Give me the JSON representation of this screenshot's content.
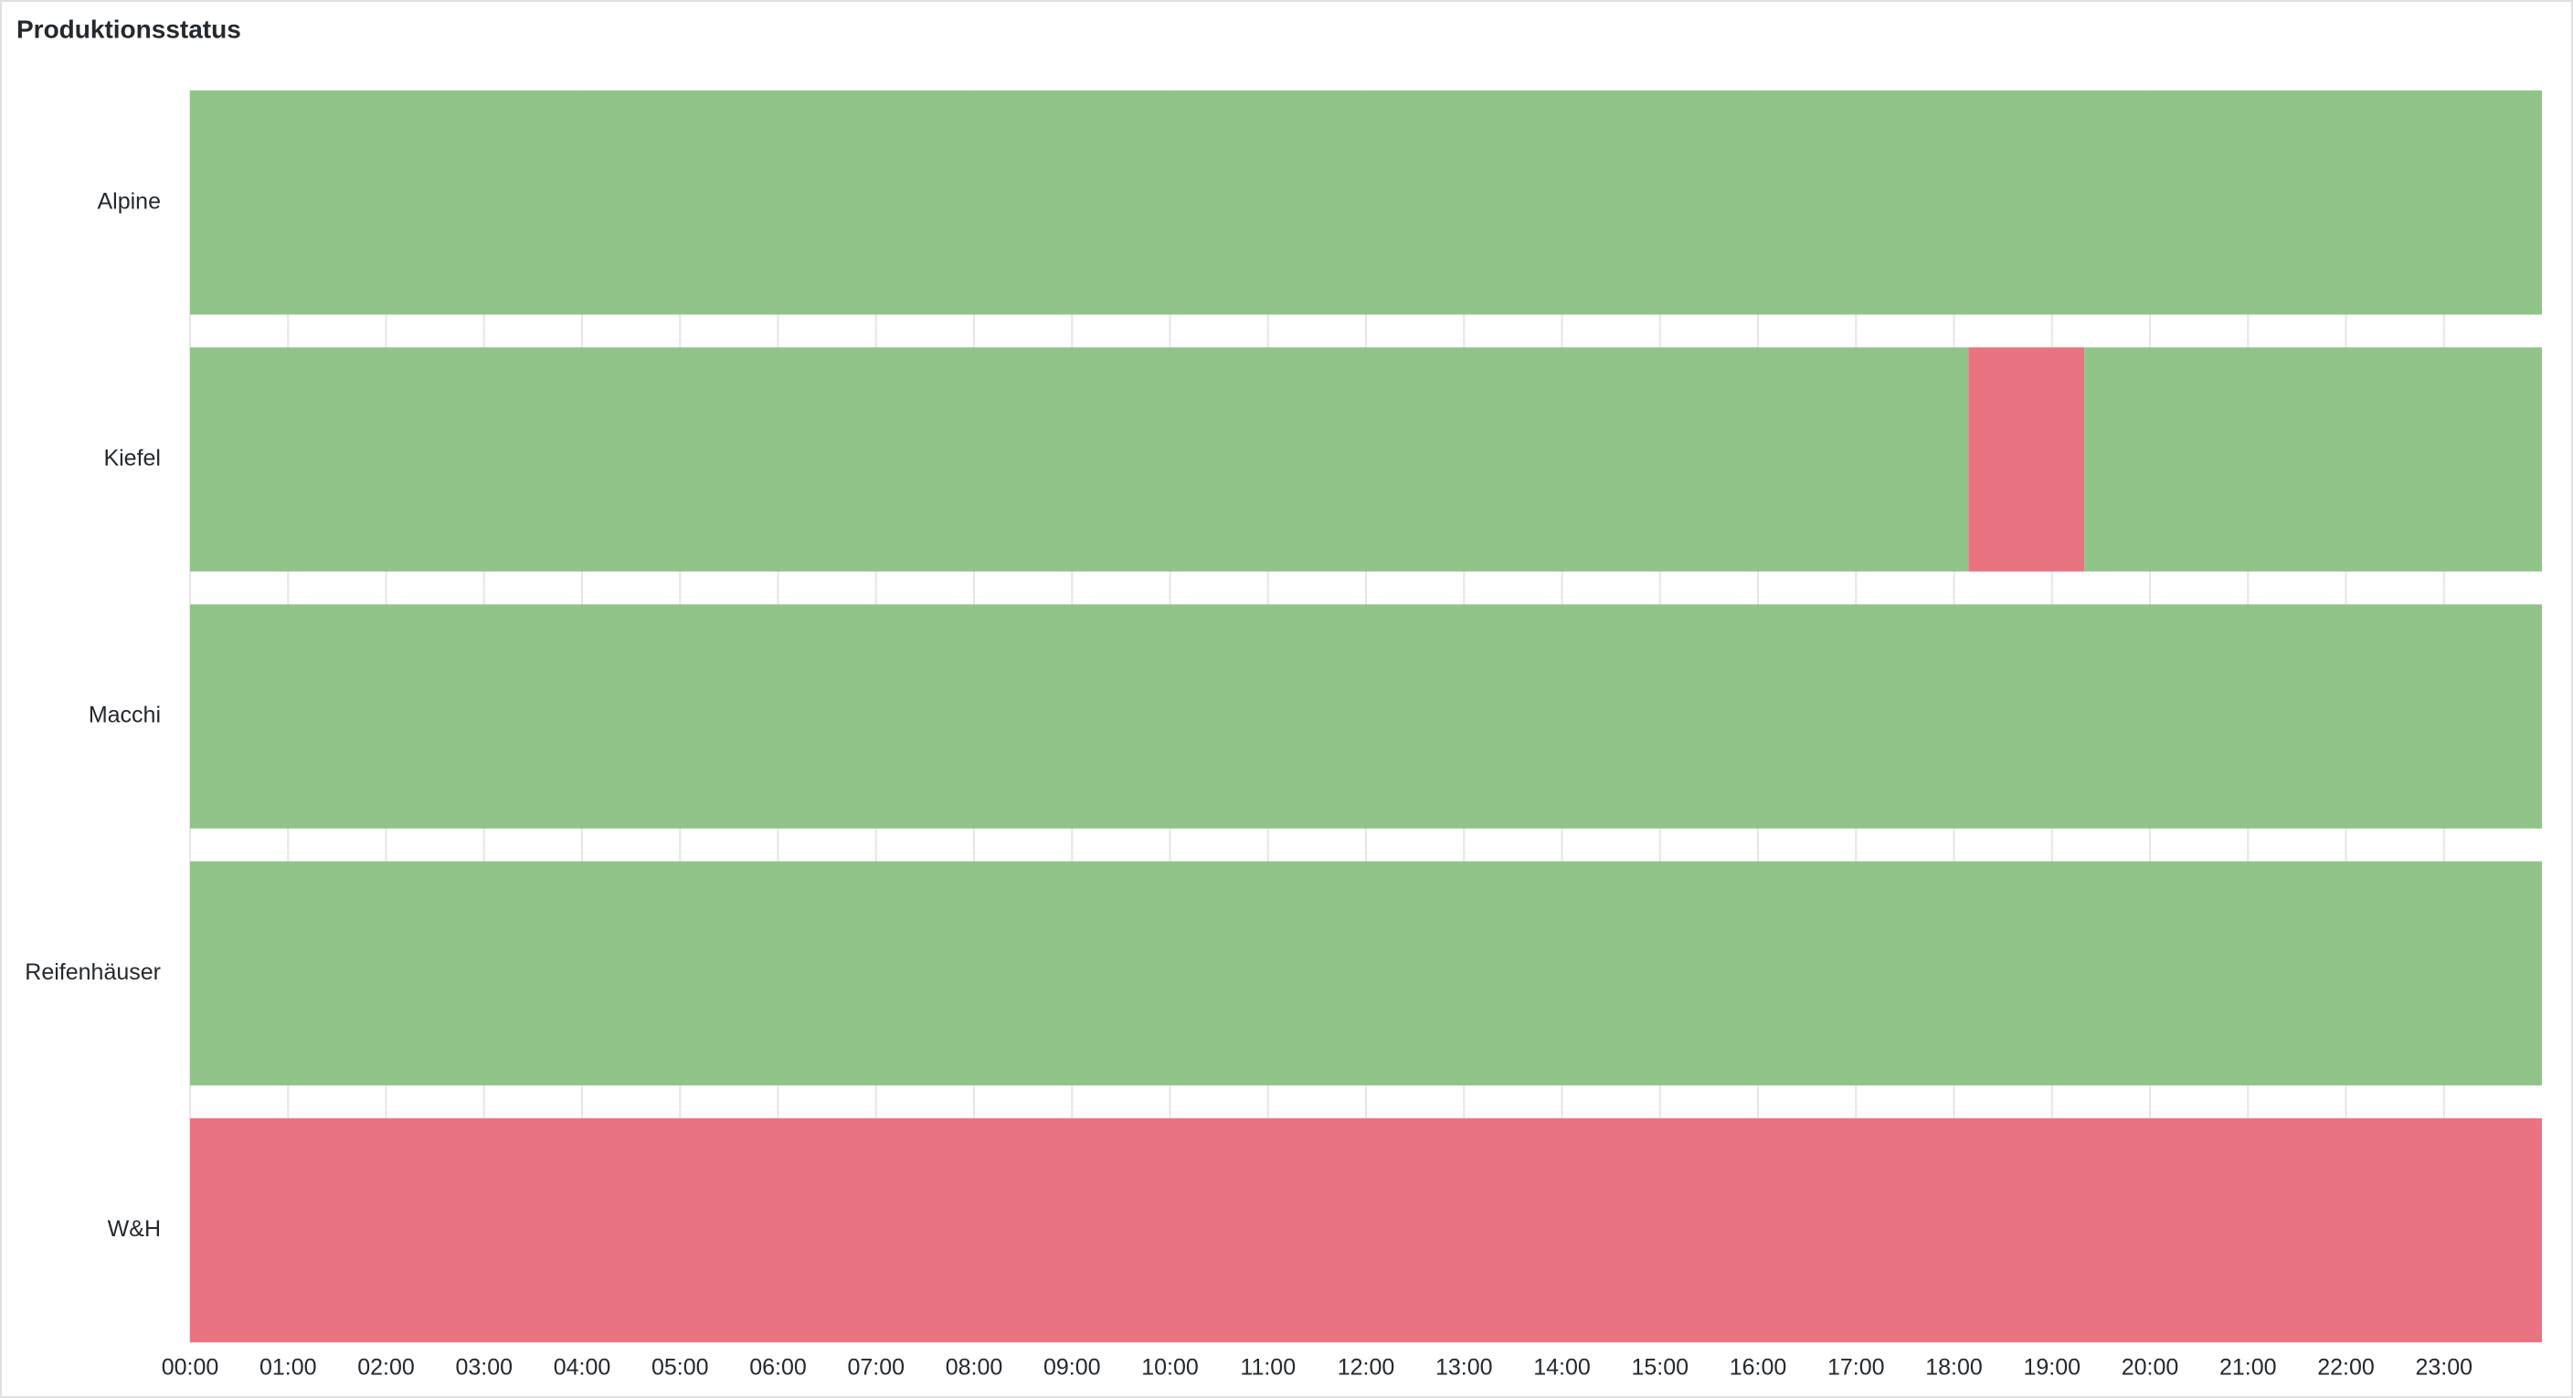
{
  "chart_data": {
    "type": "state-timeline",
    "title": "Produktionsstatus",
    "xlim": [
      0,
      24
    ],
    "xticks": [
      {
        "value": 0,
        "label": "00:00"
      },
      {
        "value": 1,
        "label": "01:00"
      },
      {
        "value": 2,
        "label": "02:00"
      },
      {
        "value": 3,
        "label": "03:00"
      },
      {
        "value": 4,
        "label": "04:00"
      },
      {
        "value": 5,
        "label": "05:00"
      },
      {
        "value": 6,
        "label": "06:00"
      },
      {
        "value": 7,
        "label": "07:00"
      },
      {
        "value": 8,
        "label": "08:00"
      },
      {
        "value": 9,
        "label": "09:00"
      },
      {
        "value": 10,
        "label": "10:00"
      },
      {
        "value": 11,
        "label": "11:00"
      },
      {
        "value": 12,
        "label": "12:00"
      },
      {
        "value": 13,
        "label": "13:00"
      },
      {
        "value": 14,
        "label": "14:00"
      },
      {
        "value": 15,
        "label": "15:00"
      },
      {
        "value": 16,
        "label": "16:00"
      },
      {
        "value": 17,
        "label": "17:00"
      },
      {
        "value": 18,
        "label": "18:00"
      },
      {
        "value": 19,
        "label": "19:00"
      },
      {
        "value": 20,
        "label": "20:00"
      },
      {
        "value": 21,
        "label": "21:00"
      },
      {
        "value": 22,
        "label": "22:00"
      },
      {
        "value": 23,
        "label": "23:00"
      }
    ],
    "grid": true,
    "series": [
      {
        "name": "Alpine",
        "segments": [
          {
            "start": 0,
            "end": 24,
            "color": "#8bc182"
          }
        ]
      },
      {
        "name": "Kiefel",
        "segments": [
          {
            "start": 0,
            "end": 18.15,
            "color": "#8bc182"
          },
          {
            "start": 18.15,
            "end": 19.33,
            "color": "#e96b7a"
          },
          {
            "start": 19.33,
            "end": 24,
            "color": "#8bc182"
          }
        ]
      },
      {
        "name": "Macchi",
        "segments": [
          {
            "start": 0,
            "end": 24,
            "color": "#8bc182"
          }
        ]
      },
      {
        "name": "Reifenhäuser",
        "segments": [
          {
            "start": 0,
            "end": 24,
            "color": "#8bc182"
          }
        ]
      },
      {
        "name": "W&H",
        "segments": [
          {
            "start": 0,
            "end": 24,
            "color": "#e96b7a"
          }
        ]
      }
    ]
  }
}
